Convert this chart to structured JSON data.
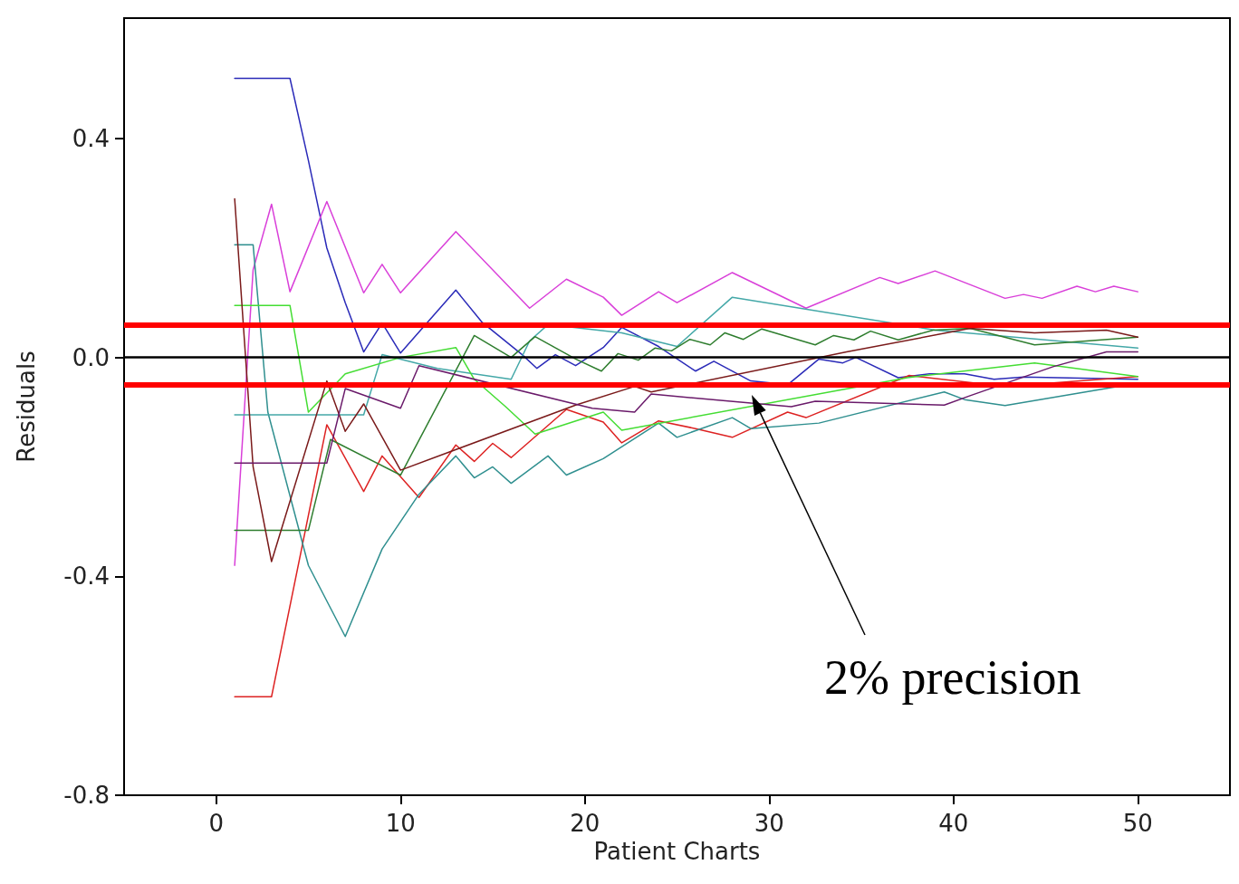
{
  "chart_data": {
    "type": "line",
    "xlabel": "Patient Charts",
    "ylabel": "Residuals",
    "xlim": [
      -5,
      55
    ],
    "xticks": [
      0,
      10,
      20,
      30,
      40,
      50
    ],
    "ylim": [
      -0.8,
      0.62
    ],
    "yticks": [
      -0.8,
      -0.4,
      {
        "value": 0,
        "label": "0.0"
      },
      0.4
    ],
    "grid": false,
    "marker": "none",
    "line_style": "solid",
    "ref_lines": [
      {
        "axis": "y",
        "value": 0,
        "color": "#000000"
      },
      {
        "axis": "y",
        "value": 0.06,
        "color": "#ff0000"
      },
      {
        "axis": "y",
        "value": -0.05,
        "color": "#ff0000"
      }
    ],
    "annotations": [
      "2% precision"
    ],
    "series": [
      {
        "color": "#2a2ab8",
        "x": [
          1,
          4,
          5,
          6,
          7,
          8,
          9,
          10,
          13,
          14.4,
          16.6,
          17.4,
          18.4,
          19.5,
          21,
          22,
          24,
          26,
          27,
          29,
          31,
          32.7,
          34,
          34.7,
          37,
          38.7,
          40.6,
          42.2,
          43.8,
          50
        ],
        "values": [
          0.51,
          0.51,
          0.36,
          0.2,
          0.1,
          0.01,
          0.063,
          0.008,
          0.123,
          0.065,
          0.005,
          -0.02,
          0.005,
          -0.015,
          0.018,
          0.055,
          0.02,
          -0.025,
          -0.007,
          -0.043,
          -0.05,
          -0.003,
          -0.01,
          0,
          -0.037,
          -0.03,
          -0.03,
          -0.04,
          -0.036,
          -0.04
        ]
      },
      {
        "color": "#d93fd9",
        "x": [
          1,
          2,
          3,
          4,
          6,
          8,
          9,
          10,
          13,
          17,
          19,
          21,
          22,
          24,
          25,
          28,
          32,
          36,
          37,
          39,
          42.8,
          43.8,
          44.8,
          46.7,
          47.7,
          48.7,
          50
        ],
        "values": [
          -0.38,
          0.16,
          0.28,
          0.12,
          0.285,
          0.118,
          0.17,
          0.118,
          0.23,
          0.09,
          0.143,
          0.11,
          0.077,
          0.12,
          0.1,
          0.155,
          0.09,
          0.146,
          0.135,
          0.158,
          0.108,
          0.115,
          0.108,
          0.13,
          0.12,
          0.13,
          0.12
        ]
      },
      {
        "color": "#dd2222",
        "x": [
          1,
          3,
          6,
          8,
          9,
          11,
          13,
          14,
          15,
          16,
          19,
          21,
          22,
          24,
          26,
          28,
          31,
          32,
          37.6,
          42.8,
          50
        ],
        "values": [
          -0.62,
          -0.62,
          -0.123,
          -0.245,
          -0.18,
          -0.256,
          -0.16,
          -0.19,
          -0.157,
          -0.183,
          -0.095,
          -0.118,
          -0.156,
          -0.116,
          -0.13,
          -0.146,
          -0.1,
          -0.11,
          -0.033,
          -0.053,
          -0.035
        ]
      },
      {
        "color": "#2f8f8f",
        "x": [
          1,
          2,
          2.8,
          5,
          7,
          9,
          11,
          13,
          14,
          15,
          16,
          18,
          19,
          21,
          24,
          25,
          28,
          29,
          32.7,
          39.5,
          40.6,
          42.8,
          50
        ],
        "values": [
          0.206,
          0.206,
          -0.1,
          -0.38,
          -0.51,
          -0.35,
          -0.25,
          -0.18,
          -0.22,
          -0.2,
          -0.23,
          -0.18,
          -0.215,
          -0.185,
          -0.12,
          -0.146,
          -0.11,
          -0.13,
          -0.12,
          -0.063,
          -0.077,
          -0.088,
          -0.047
        ]
      },
      {
        "color": "#44a8a8",
        "x": [
          1,
          8,
          9,
          12,
          16,
          17,
          18,
          22,
          25,
          28,
          39,
          50
        ],
        "values": [
          -0.105,
          -0.105,
          0.005,
          -0.02,
          -0.04,
          0.03,
          0.06,
          0.045,
          0.02,
          0.11,
          0.05,
          0.017
        ]
      },
      {
        "color": "#44dd33",
        "x": [
          1,
          4,
          5,
          7,
          10,
          13,
          14,
          15.7,
          17.3,
          21,
          22,
          37.5,
          44.4,
          50
        ],
        "values": [
          0.095,
          0.095,
          -0.1,
          -0.03,
          0,
          0.018,
          -0.04,
          -0.09,
          -0.14,
          -0.1,
          -0.133,
          -0.037,
          -0.01,
          -0.035
        ]
      },
      {
        "color": "#2e7d2e",
        "x": [
          1,
          5,
          6.2,
          10,
          14,
          16,
          17.3,
          19.5,
          20.9,
          21.8,
          22.9,
          23.8,
          24.7,
          25.7,
          26.8,
          27.6,
          28.6,
          29.6,
          32.5,
          33.5,
          34.6,
          35.5,
          37,
          38.9,
          40.9,
          44.4,
          50
        ],
        "values": [
          -0.316,
          -0.316,
          -0.15,
          -0.215,
          0.04,
          0,
          0.038,
          -0.003,
          -0.025,
          0.007,
          -0.005,
          0.017,
          0.012,
          0.033,
          0.023,
          0.045,
          0.033,
          0.052,
          0.023,
          0.04,
          0.032,
          0.048,
          0.032,
          0.05,
          0.053,
          0.023,
          0.037
        ]
      },
      {
        "color": "#7a1a1a",
        "x": [
          1,
          2,
          3,
          6,
          7,
          8,
          10,
          19.5,
          22.7,
          23.6,
          34.2,
          40.9,
          44.4,
          48.3,
          50
        ],
        "values": [
          0.29,
          -0.2,
          -0.373,
          -0.043,
          -0.135,
          -0.085,
          -0.206,
          -0.087,
          -0.053,
          -0.063,
          0.01,
          0.053,
          0.045,
          0.05,
          0.037
        ]
      },
      {
        "color": "#6a1a6a",
        "x": [
          1,
          6,
          7,
          10,
          11,
          20.4,
          22.7,
          23.6,
          31.2,
          32.5,
          39.5,
          40.9,
          45.4,
          48.3,
          50
        ],
        "values": [
          -0.193,
          -0.193,
          -0.057,
          -0.093,
          -0.015,
          -0.093,
          -0.1,
          -0.067,
          -0.09,
          -0.08,
          -0.087,
          -0.07,
          -0.017,
          0.01,
          0.01
        ]
      }
    ]
  }
}
